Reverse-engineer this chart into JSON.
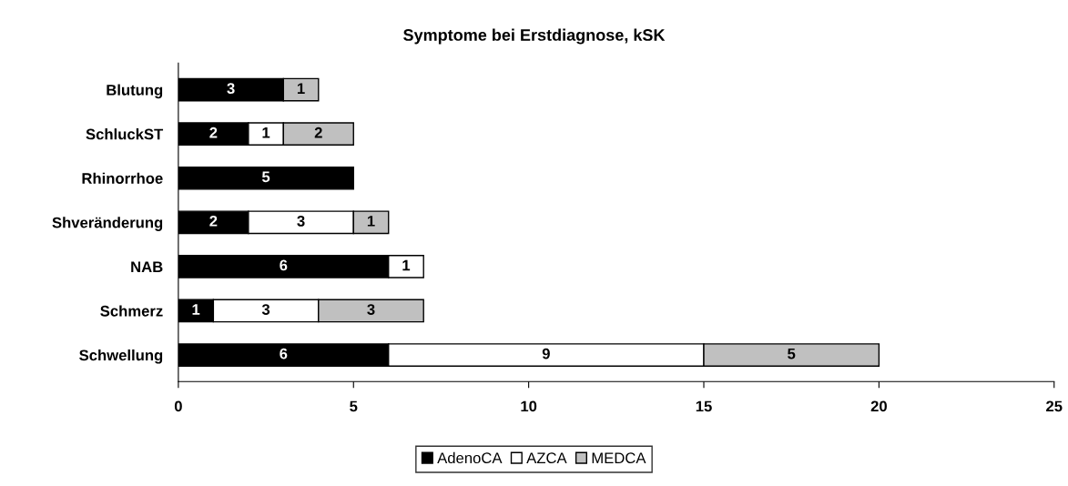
{
  "chart_data": {
    "type": "bar",
    "orientation": "horizontal",
    "stacked": true,
    "title": "Symptome bei Erstdiagnose, kSK",
    "categories": [
      "Blutung",
      "SchluckST",
      "Rhinorrhoe",
      "Shveränderung",
      "NAB",
      "Schmerz",
      "Schwellung"
    ],
    "series": [
      {
        "name": "AdenoCA",
        "color": "#000000",
        "values": [
          3,
          2,
          5,
          2,
          6,
          1,
          6
        ]
      },
      {
        "name": "AZCA",
        "color": "#ffffff",
        "values": [
          null,
          1,
          null,
          3,
          1,
          3,
          9
        ]
      },
      {
        "name": "MEDCA",
        "color": "#c0c0c0",
        "values": [
          1,
          2,
          null,
          1,
          null,
          3,
          5
        ]
      }
    ],
    "xlim": [
      0,
      25
    ],
    "xticks": [
      0,
      5,
      10,
      15,
      20,
      25
    ],
    "grid": false,
    "legend": "bottom",
    "data_labels": true
  }
}
